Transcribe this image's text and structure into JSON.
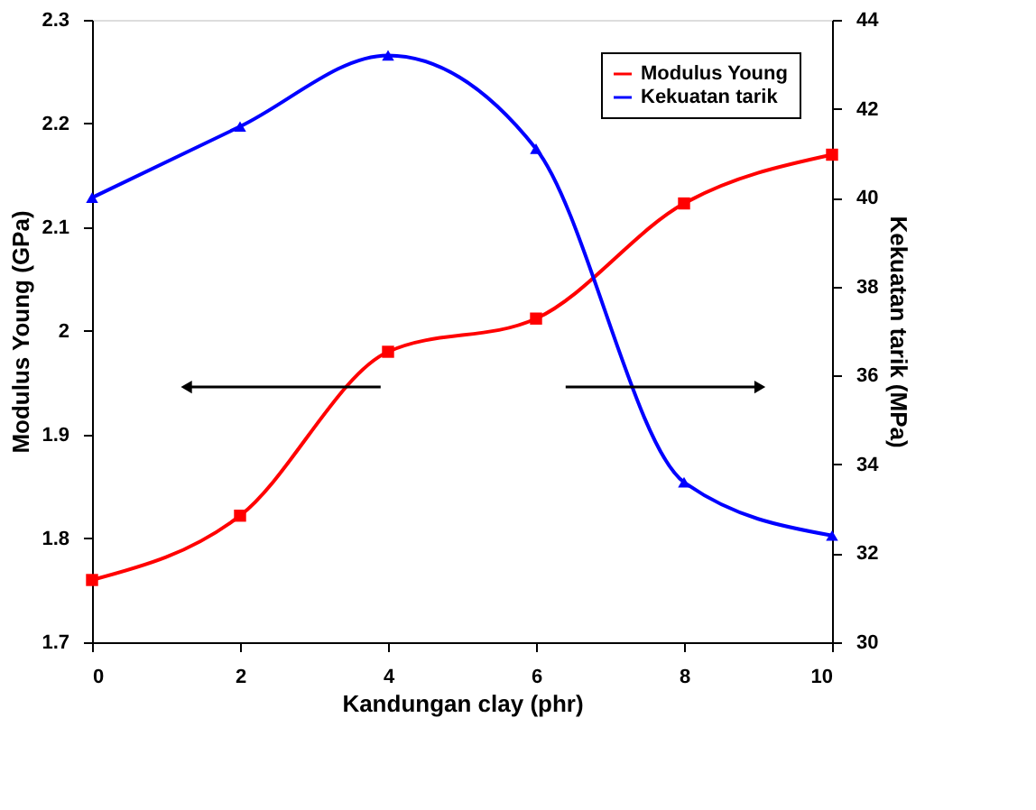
{
  "chart_data": {
    "type": "line",
    "xlabel": "Kandungan clay (phr)",
    "ylabel": "Modulus Young (GPa)",
    "y2label": "Kekuatan tarik (MPa)",
    "x": [
      0,
      2,
      4,
      6,
      8,
      10
    ],
    "series": [
      {
        "name": "Modulus Young",
        "color": "#ff0000",
        "marker": "square",
        "values": [
          1.76,
          1.822,
          1.98,
          2.012,
          2.123,
          2.17
        ]
      },
      {
        "name": "Kekuatan tarik",
        "color": "#0000ff",
        "marker": "triangle",
        "axis": "y2",
        "values": [
          40.0,
          41.6,
          43.2,
          41.1,
          33.6,
          32.4
        ]
      }
    ],
    "xlim": [
      0,
      10
    ],
    "xticks": [
      0,
      2,
      4,
      6,
      8,
      10
    ],
    "ylim": [
      1.7,
      2.3
    ],
    "yticks": [
      1.7,
      1.8,
      1.9,
      2,
      2.1,
      2.2,
      2.3
    ],
    "y2lim": [
      30,
      44
    ],
    "y2ticks": [
      30,
      32,
      34,
      36,
      38,
      40,
      42,
      44
    ],
    "grid": false,
    "legend": "top right",
    "line_style": "solid"
  }
}
